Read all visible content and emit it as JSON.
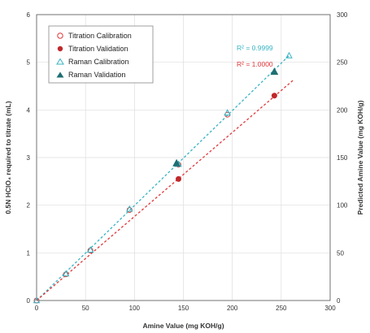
{
  "chart_data": {
    "type": "scatter",
    "xlabel": "Amine Value (mg KOH/g)",
    "ylabel": "0.5N HClO₄ required to titrate (mL)",
    "y2label": "Predicted Amine Value (mg KOH/g)",
    "xlim": [
      0,
      300
    ],
    "ylim": [
      0,
      6
    ],
    "y2lim": [
      0,
      300
    ],
    "x_ticks": [
      "0",
      "50",
      "100",
      "150",
      "200",
      "250",
      "300"
    ],
    "y_ticks": [
      "0",
      "1",
      "2",
      "3",
      "4",
      "5",
      "6"
    ],
    "y2_ticks": [
      "0",
      "50",
      "100",
      "150",
      "200",
      "250",
      "300"
    ],
    "grid": true,
    "legend_position": "top-left",
    "legend": [
      {
        "label": "Titration Calibration",
        "marker": "circle-open",
        "color": "#e0383b"
      },
      {
        "label": "Titration Validation",
        "marker": "circle-filled",
        "color": "#c0282b"
      },
      {
        "label": "Raman Calibration",
        "marker": "triangle-open",
        "color": "#37b3c2"
      },
      {
        "label": "Raman Validation",
        "marker": "triangle-filled",
        "color": "#1f6f73"
      }
    ],
    "series": [
      {
        "name": "Titration Calibration",
        "axis": "left",
        "x": [
          0,
          30,
          55,
          95,
          145,
          195
        ],
        "y": [
          0.0,
          0.55,
          1.05,
          1.9,
          2.85,
          3.9
        ]
      },
      {
        "name": "Titration Validation",
        "axis": "left",
        "x": [
          145,
          243
        ],
        "y": [
          2.55,
          4.3
        ]
      },
      {
        "name": "Raman Calibration",
        "axis": "right",
        "x": [
          0,
          30,
          55,
          95,
          145,
          195,
          258
        ],
        "y": [
          0,
          28,
          53,
          96,
          143,
          197,
          257
        ]
      },
      {
        "name": "Raman Validation",
        "axis": "right",
        "x": [
          143,
          243
        ],
        "y": [
          144,
          240
        ]
      }
    ],
    "fit_lines": [
      {
        "label": "R² = 0.9999",
        "color": "#37b3c2",
        "axis": "right",
        "x": [
          0,
          258
        ],
        "y": [
          0,
          257
        ]
      },
      {
        "label": "R² = 1.0000",
        "color": "#e0383b",
        "axis": "left",
        "x": [
          0,
          262
        ],
        "y": [
          0,
          4.62
        ]
      }
    ]
  }
}
